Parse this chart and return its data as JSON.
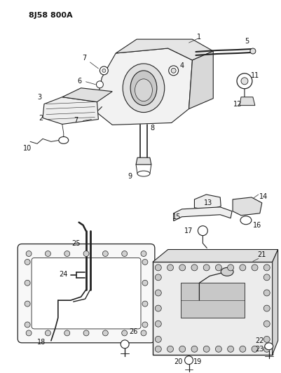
{
  "title": "8J58 800A",
  "bg_color": "#ffffff",
  "line_color": "#222222",
  "label_color": "#111111",
  "fig_width": 4.01,
  "fig_height": 5.33,
  "dpi": 100
}
